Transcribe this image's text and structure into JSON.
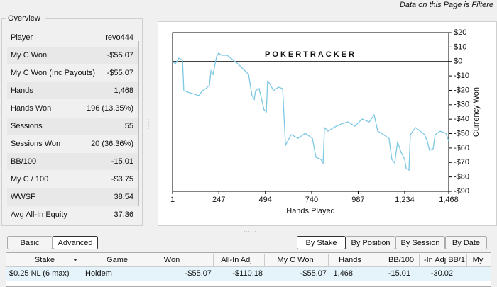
{
  "header": {
    "notice": "Data on this Page is Filtere"
  },
  "overview": {
    "title": "Overview",
    "rows": [
      {
        "label": "Player",
        "value": "revo444"
      },
      {
        "label": "My C Won",
        "value": "-$55.07",
        "color": "#d42020"
      },
      {
        "label": "My C Won (Inc Payouts)",
        "value": "-$55.07",
        "color": "#d42020",
        "label_color": "#d42020"
      },
      {
        "label": "Hands",
        "value": "1,468"
      },
      {
        "label": "Hands Won",
        "value": "196 (13.35%)"
      },
      {
        "label": "Sessions",
        "value": "55"
      },
      {
        "label": "Sessions Won",
        "value": "20 (36.36%)"
      },
      {
        "label": "BB/100",
        "value": "-15.01",
        "color": "#d42020"
      },
      {
        "label": "My C / 100",
        "value": "-$3.75",
        "color": "#d42020"
      },
      {
        "label": "WWSF",
        "value": "38.54"
      },
      {
        "label": "Avg All-In Equity",
        "value": "37.36"
      }
    ]
  },
  "chart_data": {
    "type": "line",
    "watermark": "POKERTRACKER",
    "x_label": "Hands Played",
    "y_label": "Currency Won",
    "xlim": [
      1,
      1468
    ],
    "ylim": [
      -90,
      20
    ],
    "xticks": [
      1,
      247,
      494,
      740,
      987,
      {
        "value": 1234,
        "label": "1,234"
      },
      {
        "value": 1468,
        "label": "1,468"
      }
    ],
    "yticks": [
      {
        "value": 20,
        "label": "$20"
      },
      {
        "value": 10,
        "label": "$10"
      },
      {
        "value": 0,
        "label": "$0"
      },
      {
        "value": -10,
        "label": "-$10"
      },
      {
        "value": -20,
        "label": "-$20"
      },
      {
        "value": -30,
        "label": "-$30"
      },
      {
        "value": -40,
        "label": "-$40"
      },
      {
        "value": -50,
        "label": "-$50"
      },
      {
        "value": -60,
        "label": "-$60"
      },
      {
        "value": -70,
        "label": "-$70"
      },
      {
        "value": -80,
        "label": "-$80"
      },
      {
        "value": -90,
        "label": "-$90"
      }
    ],
    "series": [
      {
        "color": "#7ec8e3",
        "x": [
          1,
          16,
          35,
          54,
          61,
          84,
          141,
          159,
          178,
          197,
          205,
          216,
          235,
          246,
          261,
          291,
          310,
          348,
          386,
          405,
          423,
          435,
          442,
          461,
          487,
          499,
          506,
          518,
          537,
          563,
          586,
          601,
          631,
          668,
          706,
          744,
          763,
          789,
          801,
          808,
          827,
          857,
          895,
          933,
          970,
          1008,
          1046,
          1072,
          1091,
          1121,
          1151,
          1166,
          1181,
          1196,
          1215,
          1234,
          1242,
          1257,
          1264,
          1291,
          1317,
          1340,
          1355,
          1366,
          1385,
          1396,
          1423,
          1453,
          1468
        ],
        "values": [
          0,
          -1.6,
          2.3,
          0.8,
          -20.3,
          -21.3,
          -23.7,
          -20.3,
          -18.8,
          -16.4,
          -6.5,
          -9.0,
          3.3,
          5.8,
          4.3,
          4.3,
          2.3,
          -1.6,
          -6.5,
          -9.0,
          -23.7,
          -26.2,
          -20.3,
          -18.8,
          -33.5,
          -35.0,
          -13.9,
          -15.4,
          -20.3,
          -17.8,
          -18.8,
          -58.1,
          -50.7,
          -53.2,
          -49.8,
          -53.2,
          -66.5,
          -67.9,
          -70.4,
          -45.8,
          -48.3,
          -45.8,
          -43.4,
          -41.9,
          -44.8,
          -39.9,
          -41.9,
          -37.0,
          -48.3,
          -50.7,
          -53.2,
          -67.9,
          -70.4,
          -55.6,
          -63.0,
          -67.9,
          -74.3,
          -75.3,
          -50.7,
          -45.8,
          -48.3,
          -50.7,
          -55.6,
          -61.5,
          -60.6,
          -50.7,
          -48.3,
          -49.8,
          -55.0
        ]
      }
    ]
  },
  "tabs": {
    "left": [
      "Basic",
      "Advanced"
    ],
    "left_selected": 1,
    "right": [
      "By Stake",
      "By Position",
      "By Session",
      "By Date"
    ],
    "right_selected": 0
  },
  "table": {
    "columns": [
      "Stake",
      "Game",
      "Won",
      "All-In Adj",
      "My C Won",
      "Hands",
      "BB/100",
      "-In Adj BB/1",
      "My"
    ],
    "rows": [
      [
        "$0.25 NL (6 max)",
        "Holdem",
        "-$55.07",
        "-$110.18",
        "-$55.07",
        "1,468",
        "-15.01",
        "-30.02"
      ]
    ],
    "row_colors": [
      null,
      null,
      "#d42020",
      "#d42020",
      "#d42020",
      null,
      "#d42020",
      "#d42020"
    ]
  }
}
